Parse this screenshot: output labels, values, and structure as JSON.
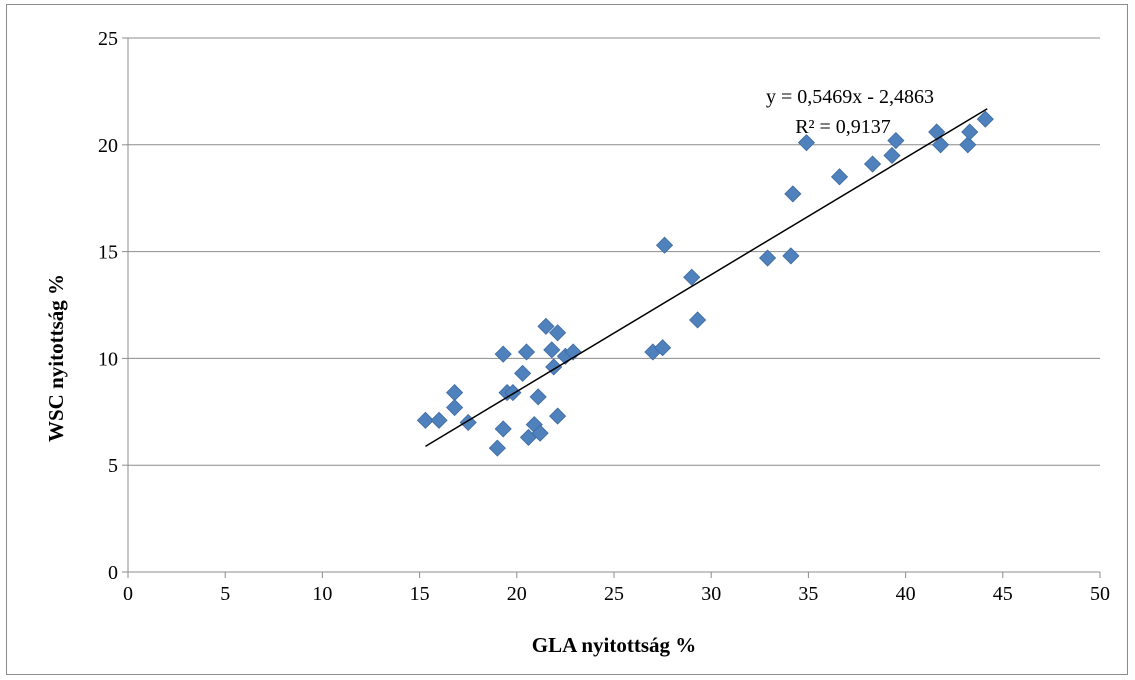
{
  "chart_data": {
    "type": "scatter",
    "title": "",
    "xlabel": "GLA nyitottság %",
    "ylabel": "WSC nyitottság %",
    "xlim": [
      0,
      50
    ],
    "ylim": [
      0,
      25
    ],
    "x_ticks": [
      "0",
      "5",
      "10",
      "15",
      "20",
      "25",
      "30",
      "35",
      "40",
      "45",
      "50"
    ],
    "y_ticks": [
      "0",
      "5",
      "10",
      "15",
      "20",
      "25"
    ],
    "grid": "horizontal",
    "legend": "none",
    "marker_color": "#4f81bd",
    "trendline": {
      "type": "linear",
      "slope": 0.5469,
      "intercept": -2.4863,
      "x_range": [
        15.3,
        44.2
      ],
      "equation_label": "y = 0,5469x - 2,4863",
      "r2_label": "R² = 0,9137",
      "color": "#000000"
    },
    "series": [
      {
        "points": [
          [
            15.3,
            7.1
          ],
          [
            16.0,
            7.1
          ],
          [
            16.8,
            8.4
          ],
          [
            16.8,
            7.7
          ],
          [
            17.5,
            7.0
          ],
          [
            19.0,
            5.8
          ],
          [
            19.3,
            6.7
          ],
          [
            19.3,
            10.2
          ],
          [
            19.5,
            8.4
          ],
          [
            19.8,
            8.4
          ],
          [
            20.3,
            9.3
          ],
          [
            20.5,
            10.3
          ],
          [
            20.6,
            6.3
          ],
          [
            20.9,
            6.9
          ],
          [
            21.1,
            8.2
          ],
          [
            21.2,
            6.5
          ],
          [
            21.5,
            11.5
          ],
          [
            21.8,
            10.4
          ],
          [
            21.9,
            9.6
          ],
          [
            22.1,
            11.2
          ],
          [
            22.1,
            7.3
          ],
          [
            22.5,
            10.1
          ],
          [
            22.9,
            10.3
          ],
          [
            27.0,
            10.3
          ],
          [
            27.5,
            10.5
          ],
          [
            27.6,
            15.3
          ],
          [
            29.0,
            13.8
          ],
          [
            29.3,
            11.8
          ],
          [
            32.9,
            14.7
          ],
          [
            34.1,
            14.8
          ],
          [
            34.2,
            17.7
          ],
          [
            34.9,
            20.1
          ],
          [
            36.6,
            18.5
          ],
          [
            38.3,
            19.1
          ],
          [
            39.3,
            19.5
          ],
          [
            39.5,
            20.2
          ],
          [
            41.6,
            20.6
          ],
          [
            41.8,
            20.0
          ],
          [
            43.2,
            20.0
          ],
          [
            43.3,
            20.6
          ],
          [
            44.1,
            21.2
          ]
        ]
      }
    ]
  }
}
